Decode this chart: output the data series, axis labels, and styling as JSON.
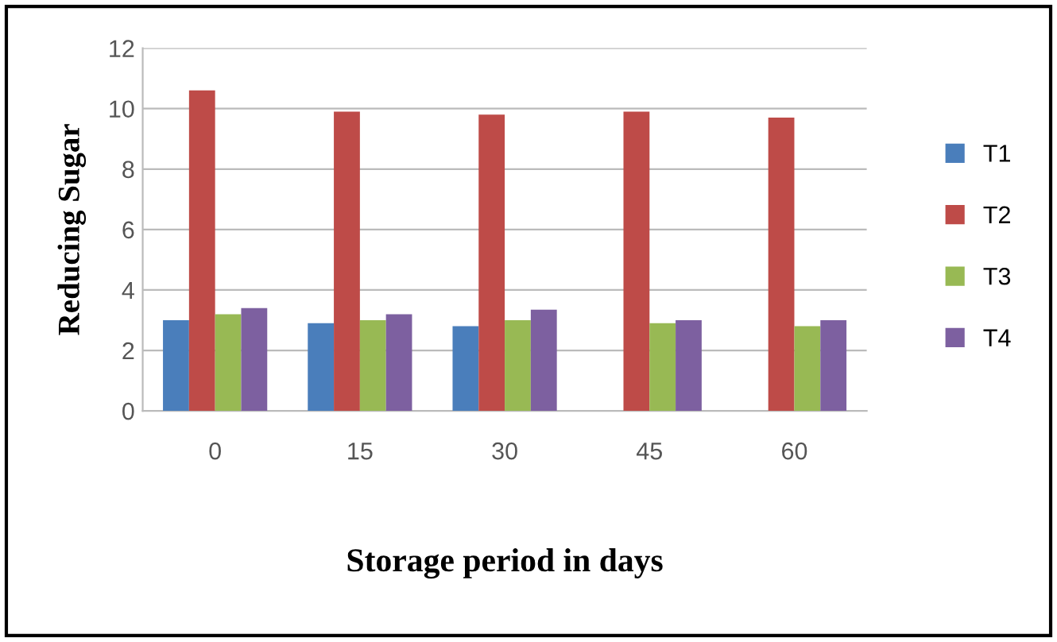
{
  "chart_data": {
    "type": "bar",
    "xlabel": "Storage period in days",
    "ylabel": "Reducing Sugar",
    "categories": [
      "0",
      "15",
      "30",
      "45",
      "60"
    ],
    "series": [
      {
        "name": "T1",
        "color": "#4a7ebb",
        "values": [
          3.0,
          2.9,
          2.8,
          null,
          null
        ]
      },
      {
        "name": "T2",
        "color": "#be4b48",
        "values": [
          10.6,
          9.9,
          9.8,
          9.9,
          9.7
        ]
      },
      {
        "name": "T3",
        "color": "#98b954",
        "values": [
          3.2,
          3.0,
          3.0,
          2.9,
          2.8
        ]
      },
      {
        "name": "T4",
        "color": "#7d60a0",
        "values": [
          3.4,
          3.2,
          3.35,
          3.0,
          3.0
        ]
      }
    ],
    "ylim": [
      0,
      12
    ],
    "yticks": [
      0,
      2,
      4,
      6,
      8,
      10,
      12
    ],
    "grid": "y",
    "legend": "right"
  }
}
